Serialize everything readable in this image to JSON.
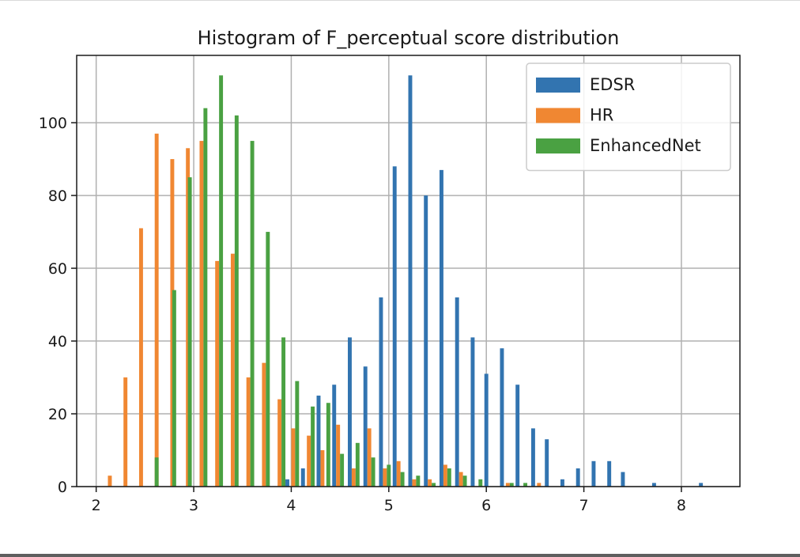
{
  "chart_data": {
    "type": "bar",
    "title": "Histogram of F_perceptual score distribution",
    "xlabel": "",
    "ylabel": "",
    "xlim": [
      1.8,
      8.6
    ],
    "ylim": [
      0,
      118.5
    ],
    "xticks": [
      "2",
      "3",
      "4",
      "5",
      "6",
      "7",
      "8"
    ],
    "yticks": [
      "0",
      "20",
      "40",
      "60",
      "80",
      "100"
    ],
    "grid": true,
    "legend_position": "top-right",
    "bar_width": 0.04,
    "series": [
      {
        "name": "EDSR",
        "color": "#3274b0",
        "points": [
          [
            3.96,
            2
          ],
          [
            4.12,
            5
          ],
          [
            4.28,
            25
          ],
          [
            4.44,
            28
          ],
          [
            4.6,
            41
          ],
          [
            4.76,
            33
          ],
          [
            4.92,
            52
          ],
          [
            5.06,
            88
          ],
          [
            5.22,
            113
          ],
          [
            5.38,
            80
          ],
          [
            5.54,
            87
          ],
          [
            5.7,
            52
          ],
          [
            5.86,
            41
          ],
          [
            6.0,
            31
          ],
          [
            6.16,
            38
          ],
          [
            6.32,
            28
          ],
          [
            6.48,
            16
          ],
          [
            6.62,
            13
          ],
          [
            6.78,
            2
          ],
          [
            6.94,
            5
          ],
          [
            7.1,
            7
          ],
          [
            7.26,
            7
          ],
          [
            7.4,
            4
          ],
          [
            7.72,
            1
          ],
          [
            8.2,
            1
          ]
        ]
      },
      {
        "name": "HR",
        "color": "#f08732",
        "points": [
          [
            2.14,
            3
          ],
          [
            2.3,
            30
          ],
          [
            2.46,
            71
          ],
          [
            2.62,
            97
          ],
          [
            2.78,
            90
          ],
          [
            2.94,
            93
          ],
          [
            3.08,
            95
          ],
          [
            3.24,
            62
          ],
          [
            3.4,
            64
          ],
          [
            3.56,
            30
          ],
          [
            3.72,
            34
          ],
          [
            3.88,
            24
          ],
          [
            4.02,
            16
          ],
          [
            4.18,
            14
          ],
          [
            4.32,
            10
          ],
          [
            4.48,
            17
          ],
          [
            4.64,
            5
          ],
          [
            4.8,
            16
          ],
          [
            4.96,
            5
          ],
          [
            5.1,
            7
          ],
          [
            5.26,
            2
          ],
          [
            5.42,
            2
          ],
          [
            5.58,
            6
          ],
          [
            5.74,
            4
          ],
          [
            6.22,
            1
          ],
          [
            6.54,
            1
          ],
          [
            6.86,
            0
          ]
        ]
      },
      {
        "name": "EnhancedNet",
        "color": "#4aa142",
        "points": [
          [
            2.62,
            8
          ],
          [
            2.8,
            54
          ],
          [
            2.96,
            85
          ],
          [
            3.12,
            104
          ],
          [
            3.28,
            113
          ],
          [
            3.44,
            102
          ],
          [
            3.6,
            95
          ],
          [
            3.76,
            70
          ],
          [
            3.92,
            41
          ],
          [
            4.06,
            29
          ],
          [
            4.22,
            22
          ],
          [
            4.38,
            23
          ],
          [
            4.52,
            9
          ],
          [
            4.68,
            12
          ],
          [
            4.84,
            8
          ],
          [
            5.0,
            6
          ],
          [
            5.14,
            4
          ],
          [
            5.3,
            3
          ],
          [
            5.46,
            1
          ],
          [
            5.62,
            5
          ],
          [
            5.78,
            3
          ],
          [
            5.94,
            2
          ],
          [
            6.26,
            1
          ],
          [
            6.4,
            1
          ]
        ]
      }
    ]
  }
}
